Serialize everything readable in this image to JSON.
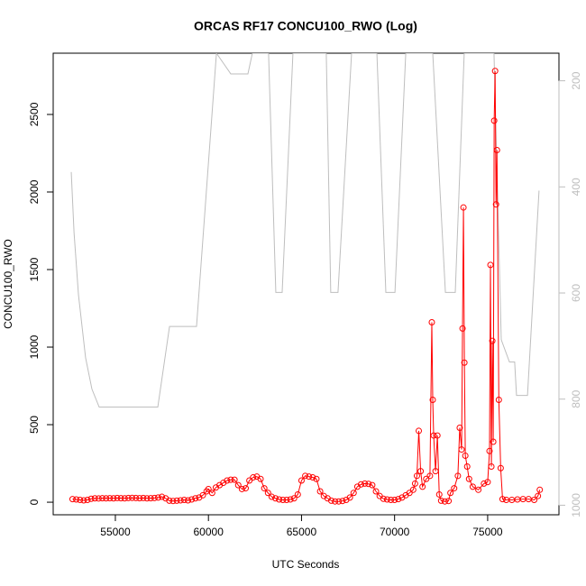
{
  "chart_data": {
    "type": "line",
    "title": "ORCAS RF17 CONCU100_RWO (Log)",
    "xlabel": "UTC Seconds",
    "ylabel": "CONCU100_RWO",
    "xlim": [
      51660,
      78830
    ],
    "ylim": [
      -81,
      2895
    ],
    "y2lim": [
      1018,
      148
    ],
    "xticks": [
      55000,
      60000,
      65000,
      70000,
      75000
    ],
    "yticks": [
      0,
      500,
      1000,
      1500,
      2000,
      2500
    ],
    "y2ticks": [
      200,
      400,
      600,
      800,
      1000
    ],
    "series": [
      {
        "color": "#ff0000",
        "marker": "circle",
        "x": [
          52700,
          52900,
          53100,
          53300,
          53500,
          53700,
          53900,
          54100,
          54300,
          54500,
          54700,
          54900,
          55100,
          55300,
          55500,
          55700,
          55900,
          56100,
          56300,
          56500,
          56700,
          56900,
          57100,
          57300,
          57500,
          57700,
          57900,
          58100,
          58300,
          58500,
          58700,
          58900,
          59100,
          59300,
          59500,
          59700,
          59900,
          60000,
          60200,
          60400,
          60600,
          60800,
          61000,
          61200,
          61400,
          61600,
          61800,
          62000,
          62200,
          62400,
          62600,
          62800,
          63000,
          63200,
          63400,
          63600,
          63800,
          64000,
          64200,
          64400,
          64600,
          64800,
          65000,
          65200,
          65400,
          65600,
          65800,
          66000,
          66200,
          66400,
          66600,
          66800,
          67000,
          67200,
          67400,
          67600,
          67800,
          68000,
          68200,
          68400,
          68600,
          68800,
          69000,
          69200,
          69400,
          69600,
          69800,
          70000,
          70200,
          70400,
          70600,
          70800,
          71000,
          71100,
          71200,
          71300,
          71400,
          71500,
          71700,
          71900,
          72000,
          72050,
          72100,
          72200,
          72300,
          72400,
          72500,
          72700,
          72900,
          73000,
          73200,
          73400,
          73500,
          73600,
          73650,
          73700,
          73750,
          73800,
          73900,
          74000,
          74200,
          74500,
          74800,
          75000,
          75100,
          75150,
          75200,
          75250,
          75300,
          75350,
          75400,
          75450,
          75500,
          75600,
          75700,
          75800,
          76000,
          76300,
          76600,
          76900,
          77200,
          77500,
          77700,
          77800
        ],
        "values": [
          20,
          18,
          15,
          12,
          15,
          22,
          25,
          24,
          26,
          25,
          26,
          25,
          27,
          26,
          25,
          27,
          28,
          27,
          26,
          27,
          25,
          26,
          27,
          30,
          35,
          25,
          10,
          8,
          10,
          12,
          15,
          12,
          18,
          25,
          30,
          45,
          70,
          85,
          60,
          95,
          110,
          125,
          140,
          145,
          145,
          110,
          85,
          90,
          140,
          160,
          165,
          150,
          90,
          60,
          35,
          25,
          18,
          15,
          15,
          18,
          25,
          50,
          140,
          170,
          165,
          160,
          150,
          70,
          40,
          25,
          10,
          5,
          5,
          8,
          15,
          30,
          60,
          100,
          115,
          120,
          118,
          110,
          70,
          40,
          22,
          18,
          15,
          15,
          20,
          30,
          45,
          60,
          80,
          120,
          170,
          460,
          200,
          100,
          150,
          170,
          1160,
          660,
          430,
          200,
          430,
          50,
          10,
          5,
          8,
          60,
          90,
          170,
          480,
          340,
          1120,
          1900,
          900,
          300,
          230,
          150,
          100,
          80,
          120,
          130,
          330,
          1530,
          230,
          1040,
          390,
          2460,
          2780,
          1920,
          2270,
          660,
          220,
          20,
          15,
          15,
          18,
          20,
          20,
          15,
          40,
          80
        ]
      },
      {
        "color": "#bebebe",
        "axis": "y2",
        "x": [
          52630,
          52780,
          53020,
          53400,
          53740,
          54130,
          57280,
          57910,
          59360,
          60430,
          61200,
          61490,
          62120,
          62360,
          63230,
          63620,
          63960,
          64540,
          66330,
          66570,
          66960,
          67690,
          69050,
          69530,
          70020,
          70600,
          72050,
          72730,
          73260,
          73740,
          75340,
          75730,
          76170,
          76450,
          76550,
          77140,
          77760
        ],
        "values": [
          372,
          486,
          604,
          722,
          781,
          815,
          815,
          663,
          663,
          148,
          187,
          187,
          187,
          148,
          148,
          599,
          599,
          148,
          148,
          599,
          599,
          148,
          148,
          599,
          599,
          148,
          148,
          599,
          599,
          148,
          148,
          688,
          730,
          730,
          793,
          793,
          407
        ]
      }
    ]
  }
}
